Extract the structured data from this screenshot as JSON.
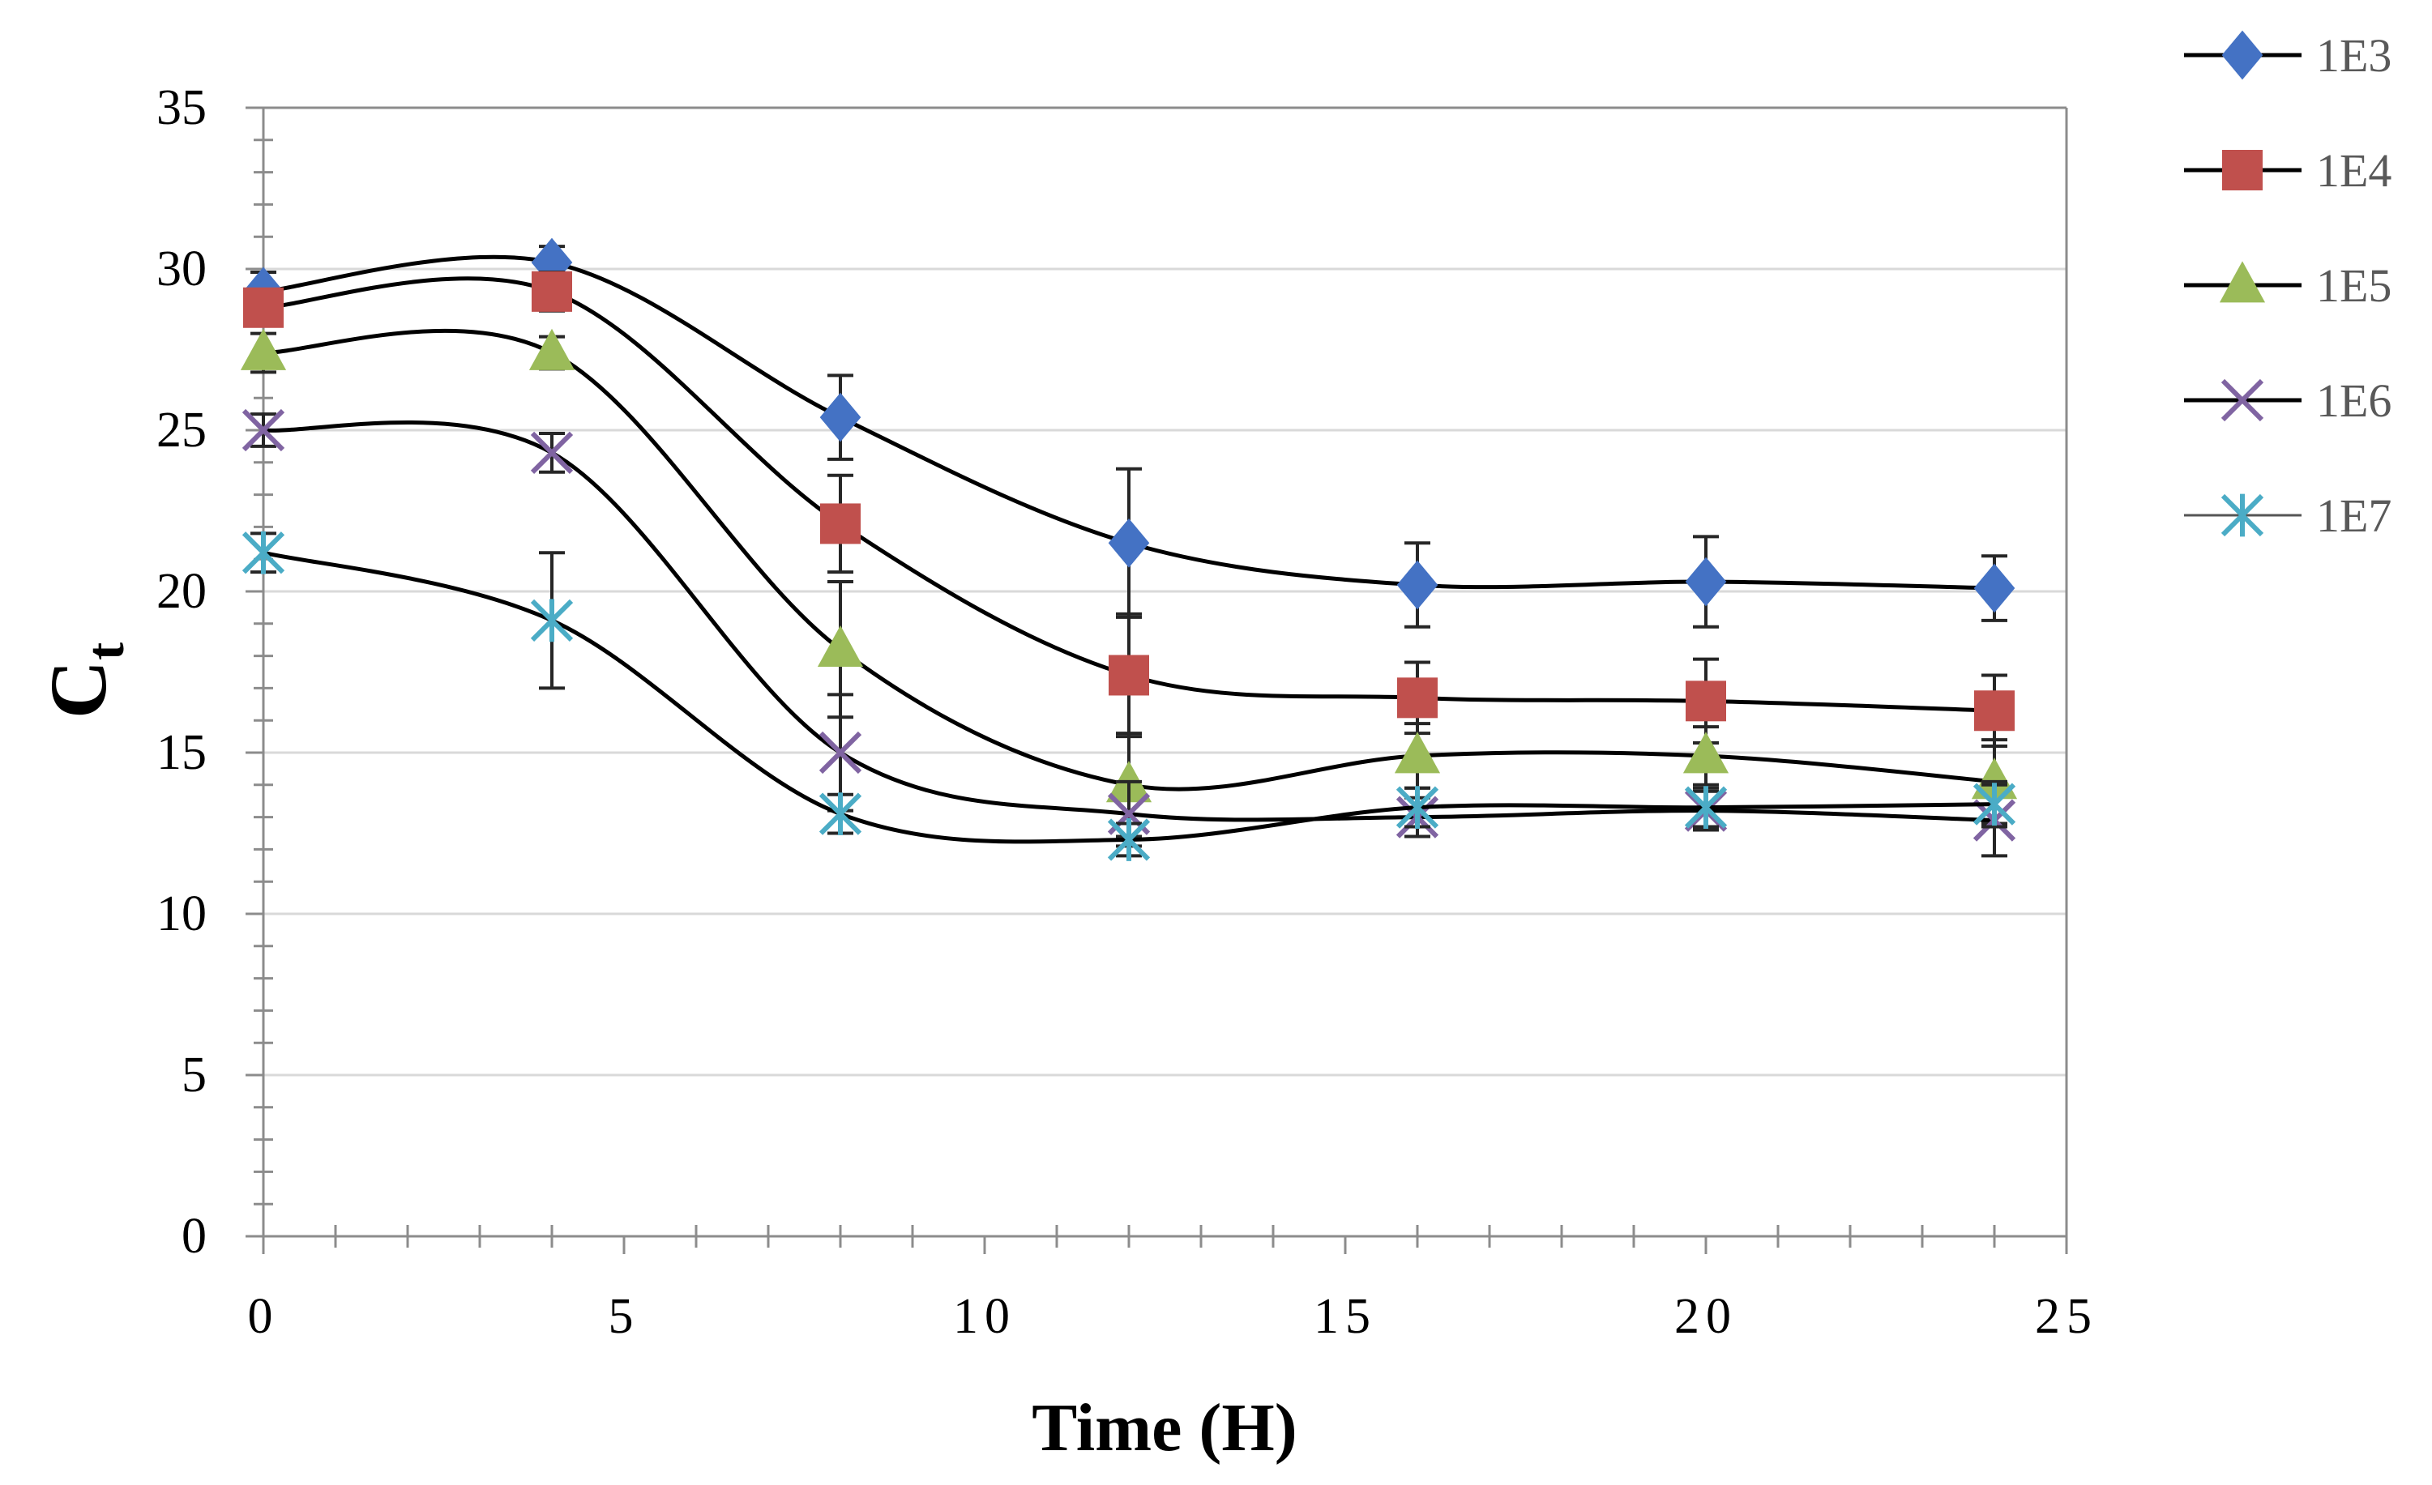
{
  "chart_data": {
    "type": "line",
    "title": "",
    "xlabel": "Time (H)",
    "ylabel": "C",
    "ylabel_subscript": "t",
    "xlim": [
      0,
      25
    ],
    "ylim": [
      0,
      35
    ],
    "x_ticks": [
      "0",
      "5",
      "10",
      "15",
      "20",
      "25"
    ],
    "y_ticks": [
      "0",
      "5",
      "10",
      "15",
      "20",
      "25",
      "30",
      "35"
    ],
    "x_tick_values": [
      0,
      5,
      10,
      15,
      20,
      25
    ],
    "y_tick_values": [
      0,
      5,
      10,
      15,
      20,
      25,
      30,
      35
    ],
    "grid": "horizontal",
    "legend_position": "right",
    "x": [
      0,
      4,
      8,
      12,
      16,
      20,
      24
    ],
    "series": [
      {
        "name": "1E3",
        "marker": "diamond",
        "color": "#4472C4",
        "line_color": "#000000",
        "values": [
          29.3,
          30.2,
          25.4,
          21.5,
          20.2,
          20.3,
          20.1
        ],
        "errors": [
          0.6,
          0.5,
          1.3,
          2.3,
          1.3,
          1.4,
          1.0
        ]
      },
      {
        "name": "1E4",
        "marker": "square",
        "color": "#C0504D",
        "line_color": "#000000",
        "values": [
          28.8,
          29.3,
          22.1,
          17.4,
          16.7,
          16.6,
          16.3
        ],
        "errors": [
          0.5,
          0.6,
          1.5,
          1.9,
          1.1,
          1.3,
          1.1
        ]
      },
      {
        "name": "1E5",
        "marker": "triangle",
        "color": "#9BBB59",
        "line_color": "#000000",
        "values": [
          27.4,
          27.4,
          18.2,
          14.0,
          14.9,
          14.9,
          14.1
        ],
        "errors": [
          0.6,
          0.5,
          2.1,
          1.6,
          1.0,
          0.9,
          1.3
        ]
      },
      {
        "name": "1E6",
        "marker": "x",
        "color": "#8064A2",
        "line_color": "#000000",
        "values": [
          25.0,
          24.3,
          15.0,
          13.1,
          13.0,
          13.2,
          12.9
        ],
        "errors": [
          0.5,
          0.6,
          1.8,
          1.0,
          0.6,
          0.6,
          1.1
        ]
      },
      {
        "name": "1E7",
        "marker": "asterisk",
        "color": "#4BACC6",
        "line_color": "#555555",
        "values": [
          21.2,
          19.1,
          13.1,
          12.3,
          13.3,
          13.3,
          13.4
        ],
        "errors": [
          0.6,
          2.1,
          0.6,
          0.5,
          0.6,
          0.6,
          0.7
        ]
      }
    ]
  }
}
